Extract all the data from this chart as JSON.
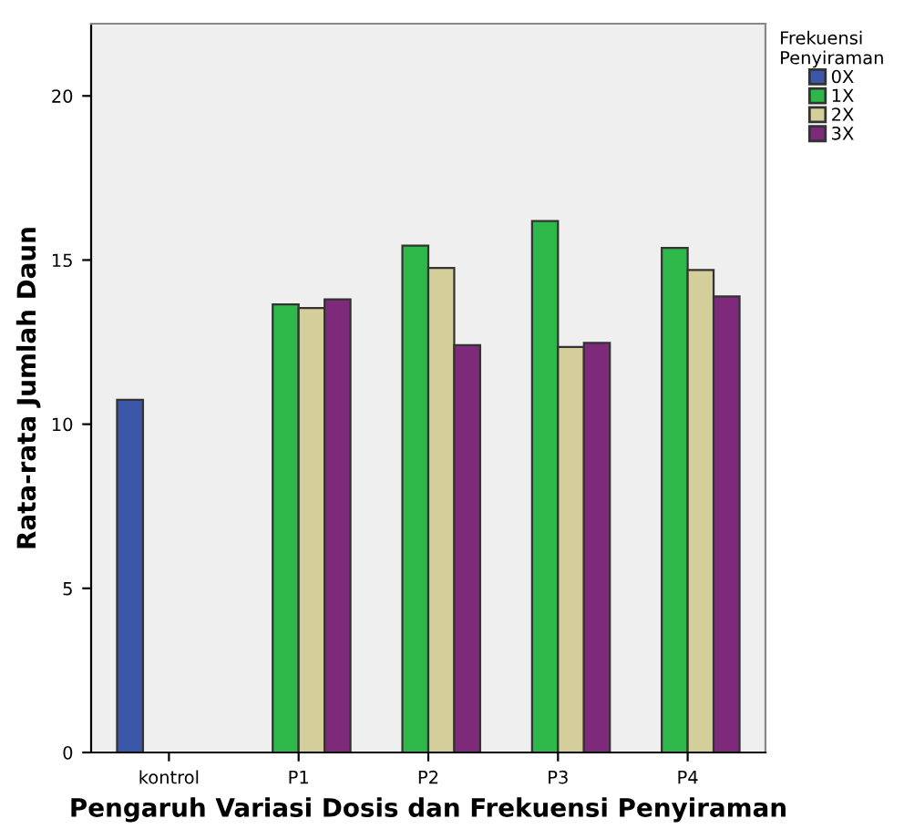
{
  "chart_data": {
    "type": "bar",
    "xlabel": "Pengaruh Variasi Dosis dan Frekuensi Penyiraman",
    "ylabel": "Rata-rata Jumlah Daun",
    "legend_title": "Frekuensi\nPenyiraman",
    "categories": [
      "kontrol",
      "P1",
      "P2",
      "P3",
      "P4"
    ],
    "series": [
      {
        "name": "0X",
        "color": "#3c56a8",
        "values": [
          10.74,
          null,
          null,
          null,
          null
        ]
      },
      {
        "name": "1X",
        "color": "#2eb84a",
        "values": [
          null,
          13.65,
          15.44,
          16.19,
          15.37
        ]
      },
      {
        "name": "2X",
        "color": "#d4cf9a",
        "values": [
          null,
          13.54,
          14.76,
          12.35,
          14.7
        ]
      },
      {
        "name": "3X",
        "color": "#7d2a7a",
        "values": [
          null,
          13.8,
          12.41,
          12.48,
          13.89
        ]
      }
    ],
    "ylim": [
      0,
      22.2
    ],
    "yticks": [
      0,
      5,
      10,
      15,
      20
    ],
    "grid": false,
    "legend": "top right"
  }
}
